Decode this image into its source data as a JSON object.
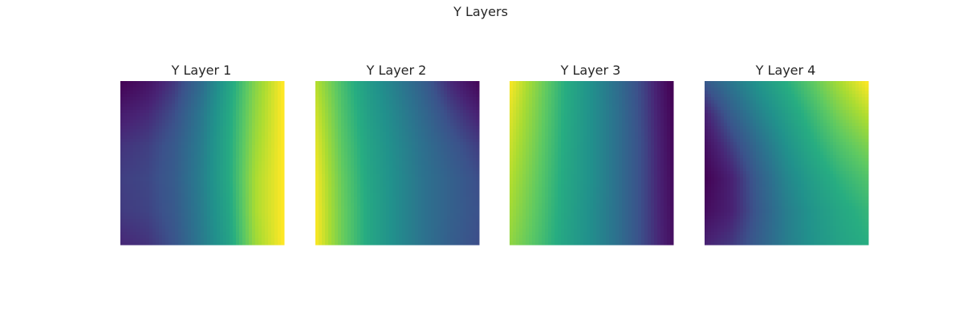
{
  "chart_data": {
    "type": "heatmap",
    "title": "Y Layers",
    "colormap": "viridis",
    "axes_visible": false,
    "grid": false,
    "panels": [
      {
        "title": "Y Layer 1",
        "values": [
          [
            0.0,
            0.06,
            0.18,
            0.35,
            0.58,
            0.82,
            1.0
          ],
          [
            0.1,
            0.14,
            0.24,
            0.4,
            0.6,
            0.84,
            1.0
          ],
          [
            0.17,
            0.2,
            0.28,
            0.42,
            0.61,
            0.86,
            1.0
          ],
          [
            0.2,
            0.22,
            0.29,
            0.43,
            0.61,
            0.88,
            1.0
          ],
          [
            0.19,
            0.21,
            0.28,
            0.42,
            0.59,
            0.88,
            1.0
          ],
          [
            0.14,
            0.17,
            0.26,
            0.41,
            0.57,
            0.86,
            1.0
          ]
        ]
      },
      {
        "title": "Y Layer 2",
        "values": [
          [
            0.9,
            0.7,
            0.54,
            0.42,
            0.3,
            0.14,
            0.02
          ],
          [
            0.94,
            0.72,
            0.56,
            0.45,
            0.34,
            0.22,
            0.12
          ],
          [
            0.97,
            0.74,
            0.58,
            0.47,
            0.37,
            0.28,
            0.2
          ],
          [
            0.99,
            0.76,
            0.59,
            0.48,
            0.38,
            0.31,
            0.24
          ],
          [
            1.0,
            0.77,
            0.6,
            0.48,
            0.38,
            0.31,
            0.25
          ],
          [
            1.0,
            0.77,
            0.6,
            0.48,
            0.38,
            0.3,
            0.24
          ]
        ]
      },
      {
        "title": "Y Layer 3",
        "values": [
          [
            1.0,
            0.82,
            0.64,
            0.5,
            0.36,
            0.2,
            0.0
          ],
          [
            0.96,
            0.8,
            0.63,
            0.5,
            0.37,
            0.21,
            0.02
          ],
          [
            0.93,
            0.78,
            0.62,
            0.5,
            0.37,
            0.22,
            0.03
          ],
          [
            0.9,
            0.76,
            0.61,
            0.5,
            0.37,
            0.22,
            0.04
          ],
          [
            0.87,
            0.74,
            0.6,
            0.49,
            0.37,
            0.22,
            0.05
          ],
          [
            0.84,
            0.72,
            0.59,
            0.49,
            0.37,
            0.22,
            0.06
          ]
        ]
      },
      {
        "title": "Y Layer 4",
        "values": [
          [
            0.28,
            0.4,
            0.52,
            0.63,
            0.75,
            0.88,
            1.0
          ],
          [
            0.12,
            0.3,
            0.44,
            0.56,
            0.68,
            0.8,
            0.9
          ],
          [
            0.05,
            0.2,
            0.36,
            0.5,
            0.62,
            0.72,
            0.8
          ],
          [
            0.0,
            0.12,
            0.3,
            0.45,
            0.56,
            0.65,
            0.72
          ],
          [
            0.04,
            0.12,
            0.28,
            0.42,
            0.52,
            0.6,
            0.66
          ],
          [
            0.12,
            0.18,
            0.3,
            0.42,
            0.51,
            0.58,
            0.63
          ]
        ]
      }
    ]
  }
}
